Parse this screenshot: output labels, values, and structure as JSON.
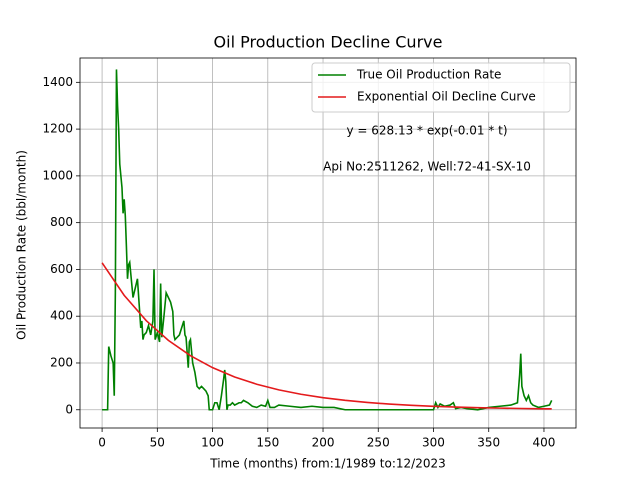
{
  "chart_data": {
    "type": "line",
    "title": "Oil Production Decline Curve",
    "xlabel": "Time (months) from:1/1989 to:12/2023",
    "ylabel": "Oil Production Rate (bbl/month)",
    "annotations": [
      "y = 628.13 * exp(-0.01 * t)",
      "Api No:2511262, Well:72-41-SX-10"
    ],
    "xlim": [
      -20,
      429
    ],
    "ylim": [
      -78,
      1504
    ],
    "xticks": [
      0,
      50,
      100,
      150,
      200,
      250,
      300,
      350,
      400
    ],
    "yticks": [
      0,
      200,
      400,
      600,
      800,
      1000,
      1200,
      1400
    ],
    "grid": true,
    "legend": "upper right",
    "series": [
      {
        "name": "True Oil Production Rate",
        "color": "#008000",
        "x": [
          0,
          5,
          6,
          8,
          10,
          11,
          12,
          13,
          14,
          15,
          16,
          18,
          19,
          20,
          21,
          22,
          23,
          24,
          25,
          26,
          28,
          30,
          32,
          34,
          35,
          36,
          37,
          38,
          40,
          42,
          44,
          46,
          47,
          48,
          50,
          52,
          53,
          54,
          56,
          58,
          60,
          62,
          64,
          65,
          66,
          68,
          70,
          72,
          74,
          75,
          76,
          78,
          79,
          80,
          82,
          84,
          86,
          88,
          90,
          92,
          94,
          96,
          97,
          100,
          102,
          104,
          106,
          108,
          110,
          111,
          112,
          113,
          114,
          116,
          118,
          120,
          124,
          126,
          128,
          132,
          136,
          140,
          144,
          148,
          150,
          152,
          156,
          160,
          170,
          180,
          190,
          200,
          210,
          220,
          240,
          260,
          280,
          300,
          302,
          304,
          306,
          310,
          315,
          318,
          320,
          325,
          330,
          340,
          350,
          360,
          370,
          376,
          378,
          379,
          380,
          382,
          384,
          386,
          388,
          390,
          395,
          400,
          405,
          407
        ],
        "values": [
          0,
          0,
          270,
          230,
          200,
          60,
          500,
          1455,
          1300,
          1200,
          1050,
          950,
          840,
          900,
          830,
          700,
          560,
          620,
          630,
          580,
          480,
          520,
          560,
          420,
          350,
          380,
          300,
          320,
          330,
          360,
          320,
          380,
          600,
          300,
          330,
          290,
          540,
          310,
          400,
          500,
          480,
          460,
          420,
          320,
          300,
          310,
          320,
          350,
          380,
          320,
          310,
          180,
          290,
          300,
          200,
          160,
          100,
          90,
          100,
          90,
          80,
          60,
          0,
          0,
          30,
          30,
          0,
          60,
          130,
          170,
          120,
          0,
          20,
          20,
          30,
          20,
          30,
          30,
          40,
          30,
          15,
          10,
          20,
          15,
          40,
          10,
          10,
          20,
          15,
          10,
          15,
          10,
          10,
          0,
          0,
          0,
          0,
          0,
          30,
          10,
          25,
          15,
          20,
          30,
          5,
          10,
          5,
          0,
          10,
          15,
          20,
          30,
          150,
          240,
          100,
          60,
          40,
          60,
          30,
          20,
          10,
          15,
          20,
          40
        ]
      },
      {
        "name": "Exponential Oil Decline Curve",
        "color": "#e41a1c",
        "x": [
          0,
          20,
          40,
          60,
          80,
          100,
          120,
          140,
          160,
          180,
          200,
          220,
          240,
          260,
          280,
          300,
          320,
          340,
          360,
          380,
          400,
          407
        ],
        "values": [
          628.1,
          489.2,
          380.9,
          296.7,
          231.1,
          180.0,
          140.2,
          109.2,
          85.0,
          66.2,
          51.6,
          40.2,
          31.3,
          24.4,
          19.0,
          14.8,
          11.5,
          9.0,
          7.0,
          5.4,
          4.2,
          3.9
        ]
      }
    ]
  }
}
